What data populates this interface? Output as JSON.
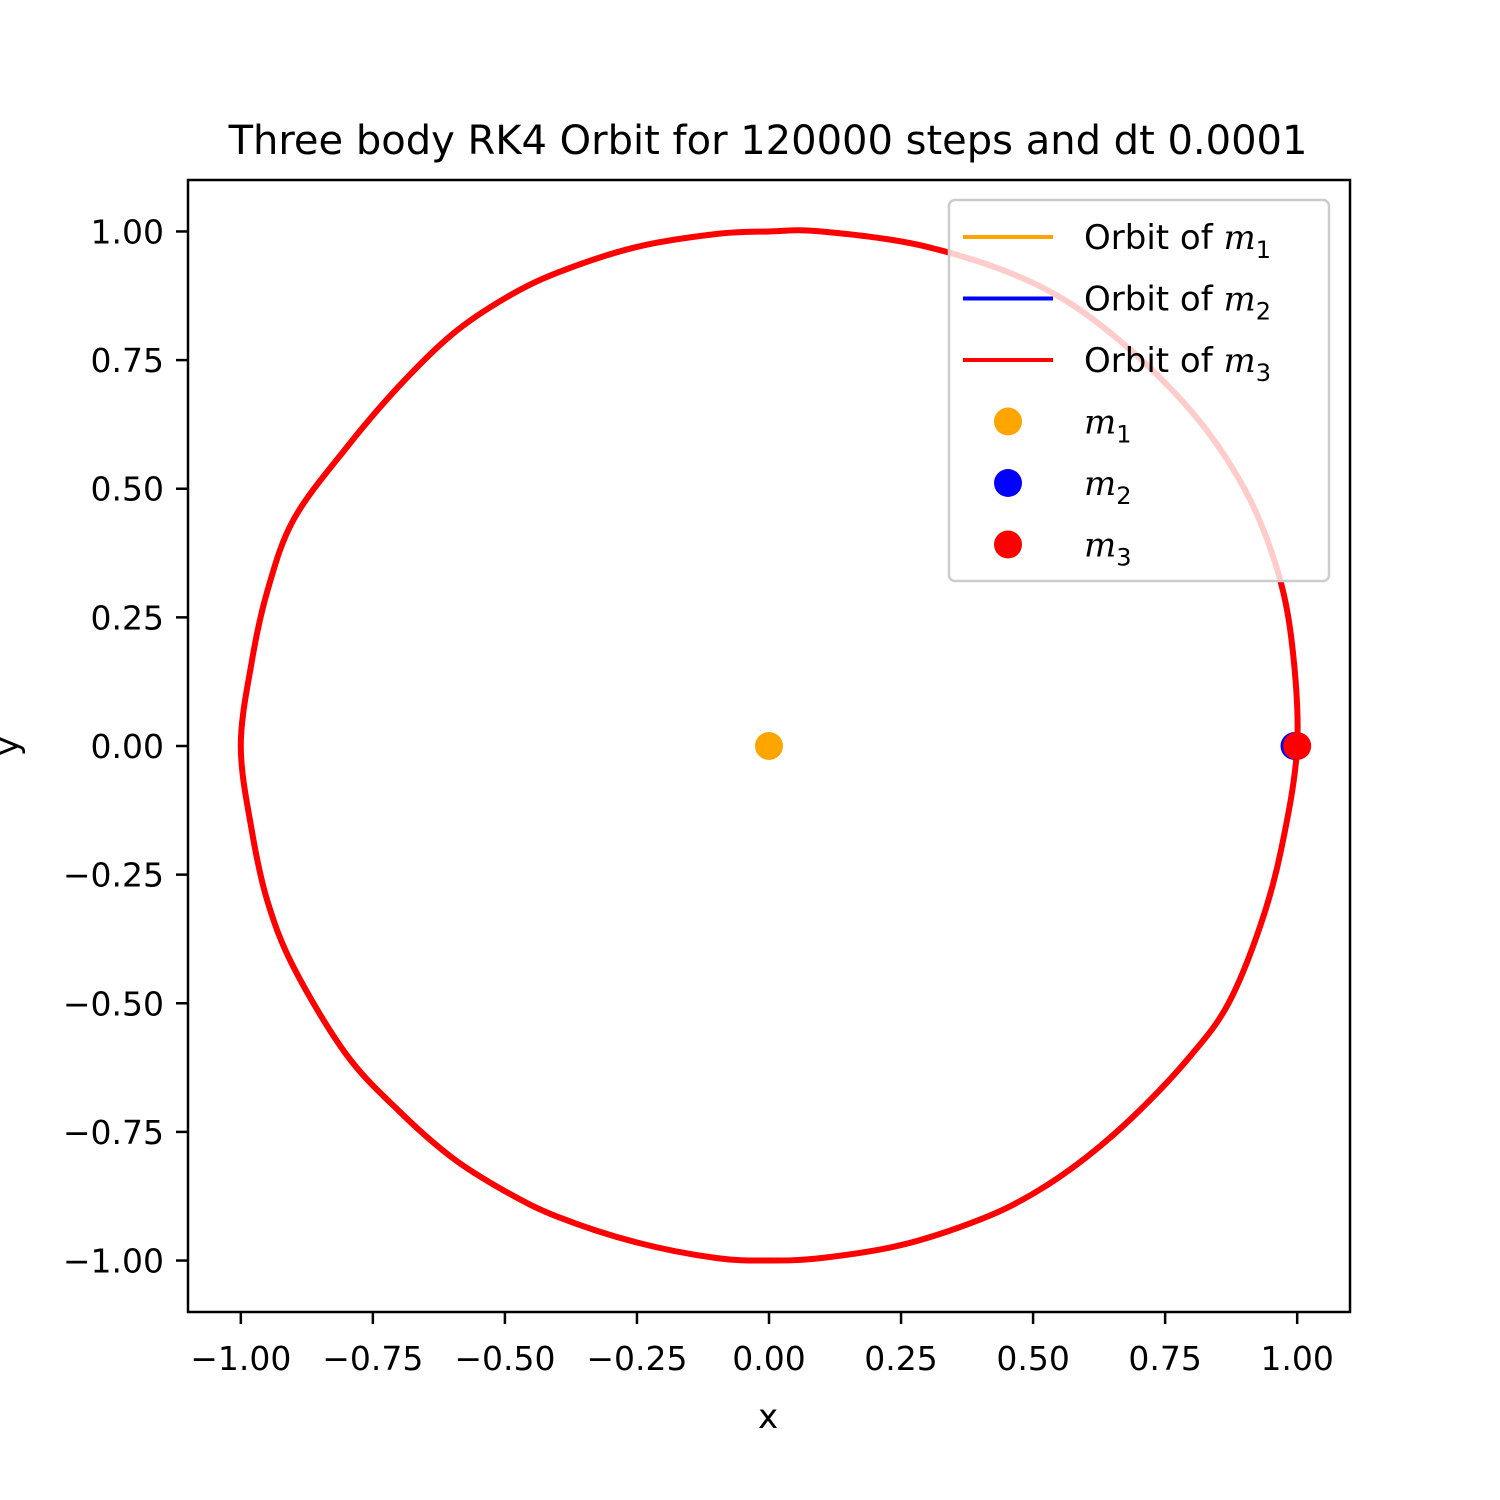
{
  "chart_data": {
    "type": "line",
    "title": "Three body RK4 Orbit for 120000 steps and dt 0.0001",
    "xlabel": "x",
    "ylabel": "y",
    "xlim": [
      -1.1,
      1.1
    ],
    "ylim": [
      -1.1,
      1.1
    ],
    "x_ticks": [
      -1.0,
      -0.75,
      -0.5,
      -0.25,
      0.0,
      0.25,
      0.5,
      0.75,
      1.0
    ],
    "y_ticks": [
      -1.0,
      -0.75,
      -0.5,
      -0.25,
      0.0,
      0.25,
      0.5,
      0.75,
      1.0
    ],
    "x_tick_labels": [
      "−1.00",
      "−0.75",
      "−0.50",
      "−0.25",
      "0.00",
      "0.25",
      "0.50",
      "0.75",
      "1.00"
    ],
    "y_tick_labels": [
      "−1.00",
      "−0.75",
      "−0.50",
      "−0.25",
      "0.00",
      "0.25",
      "0.50",
      "0.75",
      "1.00"
    ],
    "grid": false,
    "legend_position": "top-right",
    "legend": [
      {
        "kind": "line",
        "text": "Orbit of ",
        "math": "m",
        "sub": "1",
        "color": "#ffa500"
      },
      {
        "kind": "line",
        "text": "Orbit of ",
        "math": "m",
        "sub": "2",
        "color": "#0000ff"
      },
      {
        "kind": "line",
        "text": "Orbit of ",
        "math": "m",
        "sub": "3",
        "color": "#ff0000"
      },
      {
        "kind": "marker",
        "text": "",
        "math": "m",
        "sub": "1",
        "color": "#ffa500"
      },
      {
        "kind": "marker",
        "text": "",
        "math": "m",
        "sub": "2",
        "color": "#0000ff"
      },
      {
        "kind": "marker",
        "text": "",
        "math": "m",
        "sub": "3",
        "color": "#ff0000"
      }
    ],
    "series": [
      {
        "name": "Orbit of m1",
        "color": "#ffa500",
        "points": [
          [
            0.0,
            0.0
          ]
        ]
      },
      {
        "name": "Orbit of m2",
        "color": "#0000ff",
        "points": [
          [
            1.0,
            0.0
          ],
          [
            0.99,
            0.2
          ],
          [
            0.96,
            0.35
          ],
          [
            0.9,
            0.5
          ],
          [
            0.8,
            0.65
          ],
          [
            0.65,
            0.8
          ],
          [
            0.5,
            0.9
          ],
          [
            0.3,
            0.97
          ],
          [
            0.1,
            1.0
          ],
          [
            0.0,
            1.0
          ],
          [
            -0.1,
            0.995
          ],
          [
            -0.25,
            0.97
          ],
          [
            -0.4,
            0.92
          ],
          [
            -0.5,
            0.87
          ],
          [
            -0.6,
            0.8
          ],
          [
            -0.7,
            0.7
          ],
          [
            -0.8,
            0.58
          ],
          [
            -0.9,
            0.44
          ],
          [
            -0.95,
            0.3
          ],
          [
            -0.98,
            0.16
          ],
          [
            -1.0,
            0.0
          ],
          [
            -0.98,
            -0.16
          ],
          [
            -0.95,
            -0.3
          ],
          [
            -0.9,
            -0.43
          ],
          [
            -0.8,
            -0.6
          ],
          [
            -0.7,
            -0.71
          ],
          [
            -0.6,
            -0.8
          ],
          [
            -0.5,
            -0.865
          ],
          [
            -0.4,
            -0.915
          ],
          [
            -0.25,
            -0.965
          ],
          [
            -0.1,
            -0.995
          ],
          [
            0.0,
            -1.0
          ],
          [
            0.1,
            -0.995
          ],
          [
            0.25,
            -0.97
          ],
          [
            0.4,
            -0.92
          ],
          [
            0.5,
            -0.87
          ],
          [
            0.6,
            -0.8
          ],
          [
            0.7,
            -0.71
          ],
          [
            0.8,
            -0.6
          ],
          [
            0.87,
            -0.5
          ],
          [
            0.93,
            -0.35
          ],
          [
            0.97,
            -0.2
          ],
          [
            1.0,
            0.0
          ]
        ]
      },
      {
        "name": "Orbit of m3",
        "color": "#ff0000",
        "points": [
          [
            1.0,
            0.0
          ],
          [
            0.99,
            0.2
          ],
          [
            0.96,
            0.35
          ],
          [
            0.9,
            0.5
          ],
          [
            0.8,
            0.65
          ],
          [
            0.65,
            0.8
          ],
          [
            0.5,
            0.9
          ],
          [
            0.3,
            0.97
          ],
          [
            0.1,
            1.0
          ],
          [
            0.0,
            1.0
          ],
          [
            -0.1,
            0.995
          ],
          [
            -0.25,
            0.97
          ],
          [
            -0.4,
            0.92
          ],
          [
            -0.5,
            0.87
          ],
          [
            -0.6,
            0.8
          ],
          [
            -0.7,
            0.7
          ],
          [
            -0.8,
            0.58
          ],
          [
            -0.9,
            0.44
          ],
          [
            -0.95,
            0.3
          ],
          [
            -0.98,
            0.16
          ],
          [
            -1.0,
            0.0
          ],
          [
            -0.98,
            -0.16
          ],
          [
            -0.95,
            -0.3
          ],
          [
            -0.9,
            -0.43
          ],
          [
            -0.8,
            -0.6
          ],
          [
            -0.7,
            -0.71
          ],
          [
            -0.6,
            -0.8
          ],
          [
            -0.5,
            -0.865
          ],
          [
            -0.4,
            -0.915
          ],
          [
            -0.25,
            -0.965
          ],
          [
            -0.1,
            -0.995
          ],
          [
            0.0,
            -1.0
          ],
          [
            0.1,
            -0.995
          ],
          [
            0.25,
            -0.97
          ],
          [
            0.4,
            -0.92
          ],
          [
            0.5,
            -0.87
          ],
          [
            0.6,
            -0.8
          ],
          [
            0.7,
            -0.71
          ],
          [
            0.8,
            -0.6
          ],
          [
            0.87,
            -0.5
          ],
          [
            0.93,
            -0.35
          ],
          [
            0.97,
            -0.2
          ],
          [
            1.0,
            0.0
          ]
        ]
      }
    ],
    "markers": [
      {
        "name": "m1",
        "color": "#ffa500",
        "x": 0.0,
        "y": 0.0
      },
      {
        "name": "m2",
        "color": "#0000ff",
        "x": 0.995,
        "y": 0.0
      },
      {
        "name": "m3",
        "color": "#ff0000",
        "x": 1.0,
        "y": 0.0
      }
    ]
  }
}
